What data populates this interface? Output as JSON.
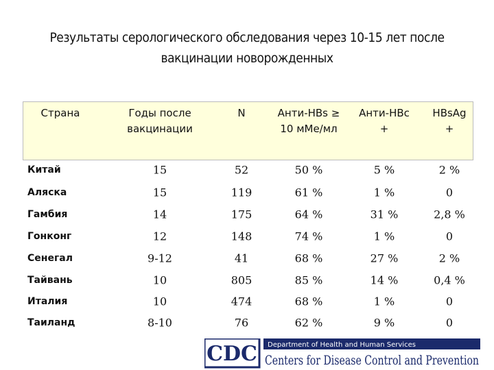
{
  "title": [
    "Результаты серологического обследования через 10-15 лет после",
    "вакцинации новорожденных"
  ],
  "table": {
    "headers": [
      [
        "Страна"
      ],
      [
        "Годы после",
        "вакцинации"
      ],
      [
        "N"
      ],
      [
        "Анти-HBs ≥",
        "10 мМе/мл"
      ],
      [
        "Анти-HBc",
        "+"
      ],
      [
        "HBsAg",
        "+"
      ]
    ],
    "rows": [
      [
        "Китай",
        "15",
        "52",
        "50 %",
        "5 %",
        "2 %"
      ],
      [
        "Аляска",
        "15",
        "119",
        "61 %",
        "1 %",
        "0"
      ],
      [
        "Гамбия",
        "14",
        "175",
        "64 %",
        "31 %",
        "2,8 %"
      ],
      [
        "Гонконг",
        "12",
        "148",
        "74 %",
        "1 %",
        "0"
      ],
      [
        "Сенегал",
        "9-12",
        "41",
        "68 %",
        "27 %",
        "2 %"
      ],
      [
        "Тайвань",
        "10",
        "805",
        "85 %",
        "14 %",
        "0,4 %"
      ],
      [
        "Италия",
        "10",
        "474",
        "68 %",
        "1 %",
        "0"
      ],
      [
        "Таиланд",
        "8-10",
        "76",
        "62 %",
        "9 %",
        "0"
      ]
    ]
  },
  "footer": {
    "logo": "CDC",
    "department": "Department of Health and Human Services",
    "agency": "Centers for Disease Control and Prevention"
  }
}
